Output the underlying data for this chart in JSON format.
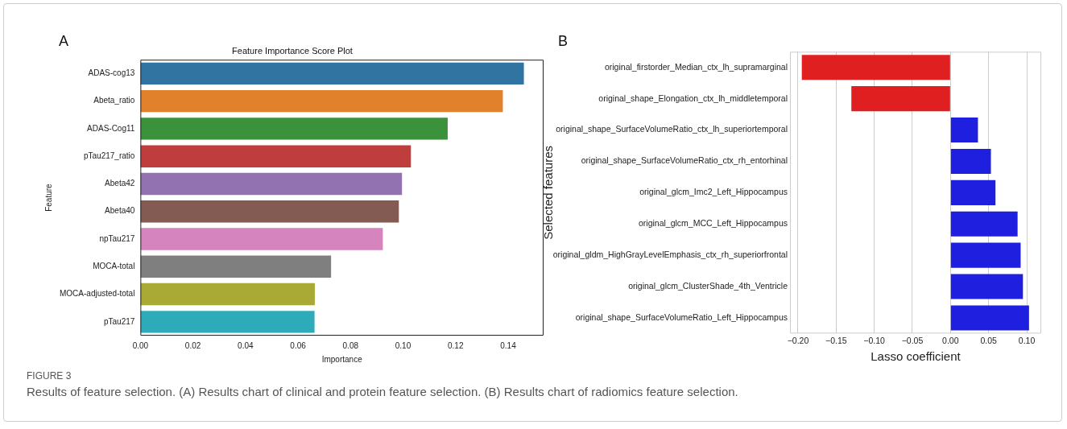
{
  "chart_data": [
    {
      "type": "bar",
      "orientation": "horizontal",
      "title": "Feature Importance Score Plot",
      "xlabel": "Importance",
      "ylabel": "Feature",
      "categories": [
        "ADAS-cog13",
        "Abeta_ratio",
        "ADAS-Cog11",
        "pTau217_ratio",
        "Abeta42",
        "Abeta40",
        "npTau217",
        "MOCA-total",
        "MOCA-adjusted-total",
        "pTau217"
      ],
      "values": [
        0.146,
        0.138,
        0.117,
        0.103,
        0.0996,
        0.0984,
        0.0923,
        0.0726,
        0.0664,
        0.0663
      ],
      "colors": [
        "#3274a1",
        "#e1812c",
        "#3a923a",
        "#c03d3e",
        "#9372b2",
        "#845b53",
        "#d684bd",
        "#7f7f7f",
        "#a9aa35",
        "#2eabb8"
      ],
      "xlim": [
        0,
        0.1535
      ],
      "xticks": [
        {
          "value": 0,
          "label": "0.00"
        },
        {
          "value": 0.02,
          "label": "0.02"
        },
        {
          "value": 0.04,
          "label": "0.04"
        },
        {
          "value": 0.06,
          "label": "0.06"
        },
        {
          "value": 0.08,
          "label": "0.08"
        },
        {
          "value": 0.1,
          "label": "0.10"
        },
        {
          "value": 0.12,
          "label": "0.12"
        },
        {
          "value": 0.14,
          "label": "0.14"
        }
      ],
      "grid": false,
      "annotations": [
        "A",
        "FIGURE 3",
        "Results of feature selection. (A) Results chart of clinical and protein feature selection. (B) Results chart of radiomics feature selection."
      ]
    },
    {
      "type": "bar",
      "orientation": "horizontal",
      "xlabel": "Lasso coefficient",
      "ylabel": "Selected features",
      "categories": [
        "original_firstorder_Median_ctx_lh_supramarginal",
        "original_shape_Elongation_ctx_lh_middletemporal",
        "original_shape_SurfaceVolumeRatio_ctx_lh_superiortemporal",
        "original_shape_SurfaceVolumeRatio_ctx_rh_entorhinal",
        "original_glcm_Imc2_Left_Hippocampus",
        "original_glcm_MCC_Left_Hippocampus",
        "original_gldm_HighGrayLevelEmphasis_ctx_rh_superiorfrontal",
        "original_glcm_ClusterShade_4th_Ventricle",
        "original_shape_SurfaceVolumeRatio_Left_Hippocampus"
      ],
      "values": [
        -0.195,
        -0.13,
        0.036,
        0.053,
        0.059,
        0.088,
        0.092,
        0.095,
        0.103
      ],
      "colors": [
        "#e01f21",
        "#e01f21",
        "#1f1fe0",
        "#1f1fe0",
        "#1f1fe0",
        "#1f1fe0",
        "#1f1fe0",
        "#1f1fe0",
        "#1f1fe0"
      ],
      "xlim": [
        -0.2105,
        0.119
      ],
      "xticks": [
        {
          "value": -0.2,
          "label": "−0.20"
        },
        {
          "value": -0.15,
          "label": "−0.15"
        },
        {
          "value": -0.1,
          "label": "−0.10"
        },
        {
          "value": -0.05,
          "label": "−0.05"
        },
        {
          "value": 0,
          "label": "0.00"
        },
        {
          "value": 0.05,
          "label": "0.05"
        },
        {
          "value": 0.1,
          "label": "0.10"
        }
      ],
      "grid": "x",
      "annotations": [
        "B"
      ]
    }
  ]
}
